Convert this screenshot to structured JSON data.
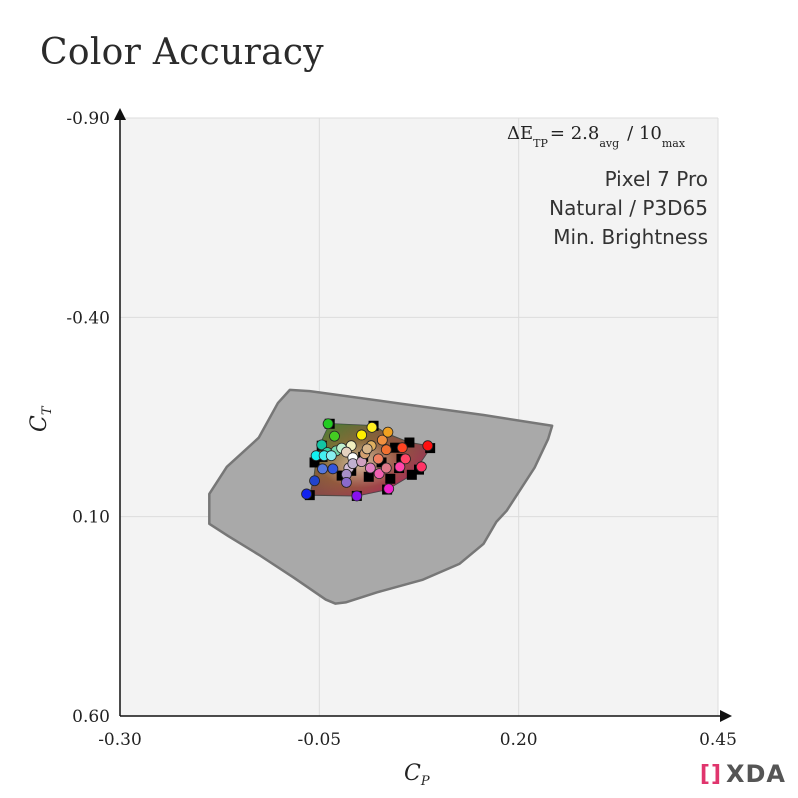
{
  "title": "Color Accuracy",
  "metric": {
    "prefix": "ΔE",
    "prefix_sub": "TP",
    "avg": "= 2.8",
    "avg_sub": "avg",
    "max": "/ 10",
    "max_sub": "max"
  },
  "info_lines": [
    "Pixel 7 Pro",
    "Natural / P3D65",
    "Min. Brightness"
  ],
  "logo_text": "XDA",
  "chart_data": {
    "type": "scatter",
    "xlabel": "C",
    "xlabel_sub": "P",
    "ylabel": "C",
    "ylabel_sub": "T",
    "xlim": [
      -0.3,
      0.45
    ],
    "ylim": [
      -0.9,
      0.6
    ],
    "y_inverted": true,
    "x_ticks": [
      "-0.30",
      "-0.05",
      "0.20",
      "0.45"
    ],
    "y_ticks": [
      "-0.90",
      "-0.40",
      "0.10",
      "0.60"
    ],
    "grid": true,
    "gamut_outline": [
      [
        -0.087,
        -0.218
      ],
      [
        -0.062,
        -0.215
      ],
      [
        0.054,
        -0.183
      ],
      [
        0.156,
        -0.155
      ],
      [
        0.242,
        -0.128
      ],
      [
        0.237,
        -0.095
      ],
      [
        0.22,
        -0.023
      ],
      [
        0.185,
        0.085
      ],
      [
        0.172,
        0.113
      ],
      [
        0.156,
        0.168
      ],
      [
        0.126,
        0.218
      ],
      [
        0.08,
        0.258
      ],
      [
        0.022,
        0.29
      ],
      [
        -0.017,
        0.315
      ],
      [
        -0.03,
        0.318
      ],
      [
        -0.042,
        0.308
      ],
      [
        -0.082,
        0.253
      ],
      [
        -0.124,
        0.198
      ],
      [
        -0.164,
        0.149
      ],
      [
        -0.188,
        0.118
      ],
      [
        -0.188,
        0.043
      ],
      [
        -0.166,
        -0.025
      ],
      [
        -0.126,
        -0.098
      ],
      [
        -0.102,
        -0.185
      ]
    ],
    "target_outline": [
      [
        -0.037,
        -0.133
      ],
      [
        0.018,
        -0.128
      ],
      [
        0.035,
        -0.108
      ],
      [
        0.063,
        -0.086
      ],
      [
        0.086,
        -0.078
      ],
      [
        0.089,
        -0.072
      ],
      [
        0.081,
        -0.048
      ],
      [
        0.066,
        -0.005
      ],
      [
        0.035,
        0.032
      ],
      [
        -0.003,
        0.048
      ],
      [
        -0.062,
        0.046
      ],
      [
        -0.057,
        0.005
      ],
      [
        -0.052,
        -0.069
      ]
    ],
    "reference_squares": [
      [
        -0.037,
        -0.133
      ],
      [
        -0.047,
        -0.078
      ],
      [
        -0.056,
        -0.036
      ],
      [
        -0.062,
        0.046
      ],
      [
        -0.046,
        -0.05
      ],
      [
        -0.022,
        -0.003
      ],
      [
        0.012,
        0.0
      ],
      [
        0.005,
        -0.05
      ],
      [
        -0.003,
        0.048
      ],
      [
        -0.01,
        -0.015
      ],
      [
        0.018,
        -0.128
      ],
      [
        0.028,
        -0.036
      ],
      [
        0.045,
        -0.073
      ],
      [
        0.035,
        0.032
      ],
      [
        0.063,
        -0.086
      ],
      [
        0.039,
        0.005
      ],
      [
        0.05,
        -0.022
      ],
      [
        0.075,
        -0.018
      ],
      [
        0.089,
        -0.072
      ],
      [
        0.066,
        -0.005
      ],
      [
        0.053,
        -0.045
      ]
    ],
    "measured_points": [
      {
        "x": -0.039,
        "y": -0.133,
        "color": "#22cc22"
      },
      {
        "x": -0.031,
        "y": -0.102,
        "color": "#44cc22"
      },
      {
        "x": -0.047,
        "y": -0.08,
        "color": "#11c4a4"
      },
      {
        "x": -0.04,
        "y": -0.061,
        "color": "#33d0a0"
      },
      {
        "x": -0.029,
        "y": -0.065,
        "color": "#77d8aa"
      },
      {
        "x": -0.054,
        "y": -0.053,
        "color": "#11f0f0"
      },
      {
        "x": -0.044,
        "y": -0.053,
        "color": "#44f0f0"
      },
      {
        "x": -0.035,
        "y": -0.053,
        "color": "#88f0f0"
      },
      {
        "x": -0.022,
        "y": -0.072,
        "color": "#c0f0d0"
      },
      {
        "x": -0.01,
        "y": -0.078,
        "color": "#f0f0c0"
      },
      {
        "x": -0.016,
        "y": -0.062,
        "color": "#e6d2c0"
      },
      {
        "x": -0.008,
        "y": -0.048,
        "color": "#ffffff"
      },
      {
        "x": -0.013,
        "y": -0.022,
        "color": "#d4c0d8"
      },
      {
        "x": -0.016,
        "y": -0.006,
        "color": "#a890c8"
      },
      {
        "x": -0.016,
        "y": 0.014,
        "color": "#8a6acc"
      },
      {
        "x": -0.033,
        "y": -0.02,
        "color": "#3355dd"
      },
      {
        "x": -0.046,
        "y": -0.02,
        "color": "#5577dd"
      },
      {
        "x": -0.056,
        "y": 0.01,
        "color": "#2244cc"
      },
      {
        "x": -0.066,
        "y": 0.043,
        "color": "#1122ee"
      },
      {
        "x": -0.003,
        "y": 0.048,
        "color": "#8811ee"
      },
      {
        "x": -0.008,
        "y": -0.033,
        "color": "#c0b0d0"
      },
      {
        "x": 0.003,
        "y": -0.038,
        "color": "#d0a0c0"
      },
      {
        "x": 0.014,
        "y": -0.022,
        "color": "#e080c0"
      },
      {
        "x": 0.025,
        "y": -0.008,
        "color": "#f060b0"
      },
      {
        "x": 0.037,
        "y": 0.03,
        "color": "#ee22cc"
      },
      {
        "x": 0.051,
        "y": -0.025,
        "color": "#ff44aa"
      },
      {
        "x": 0.058,
        "y": -0.045,
        "color": "#ff4466"
      },
      {
        "x": 0.086,
        "y": -0.078,
        "color": "#ff1111"
      },
      {
        "x": 0.078,
        "y": -0.025,
        "color": "#ff3366"
      },
      {
        "x": 0.054,
        "y": -0.073,
        "color": "#ff4422"
      },
      {
        "x": 0.034,
        "y": -0.068,
        "color": "#f07030"
      },
      {
        "x": 0.024,
        "y": -0.045,
        "color": "#f08060"
      },
      {
        "x": 0.034,
        "y": -0.022,
        "color": "#e07a8a"
      },
      {
        "x": 0.007,
        "y": -0.058,
        "color": "#d4a070"
      },
      {
        "x": 0.015,
        "y": -0.078,
        "color": "#e0b060"
      },
      {
        "x": 0.029,
        "y": -0.092,
        "color": "#f09040"
      },
      {
        "x": 0.036,
        "y": -0.112,
        "color": "#f0a020"
      },
      {
        "x": 0.003,
        "y": -0.105,
        "color": "#ffee00"
      },
      {
        "x": 0.016,
        "y": -0.124,
        "color": "#ffee22"
      },
      {
        "x": 0.01,
        "y": -0.07,
        "color": "#d8b68a"
      }
    ]
  }
}
